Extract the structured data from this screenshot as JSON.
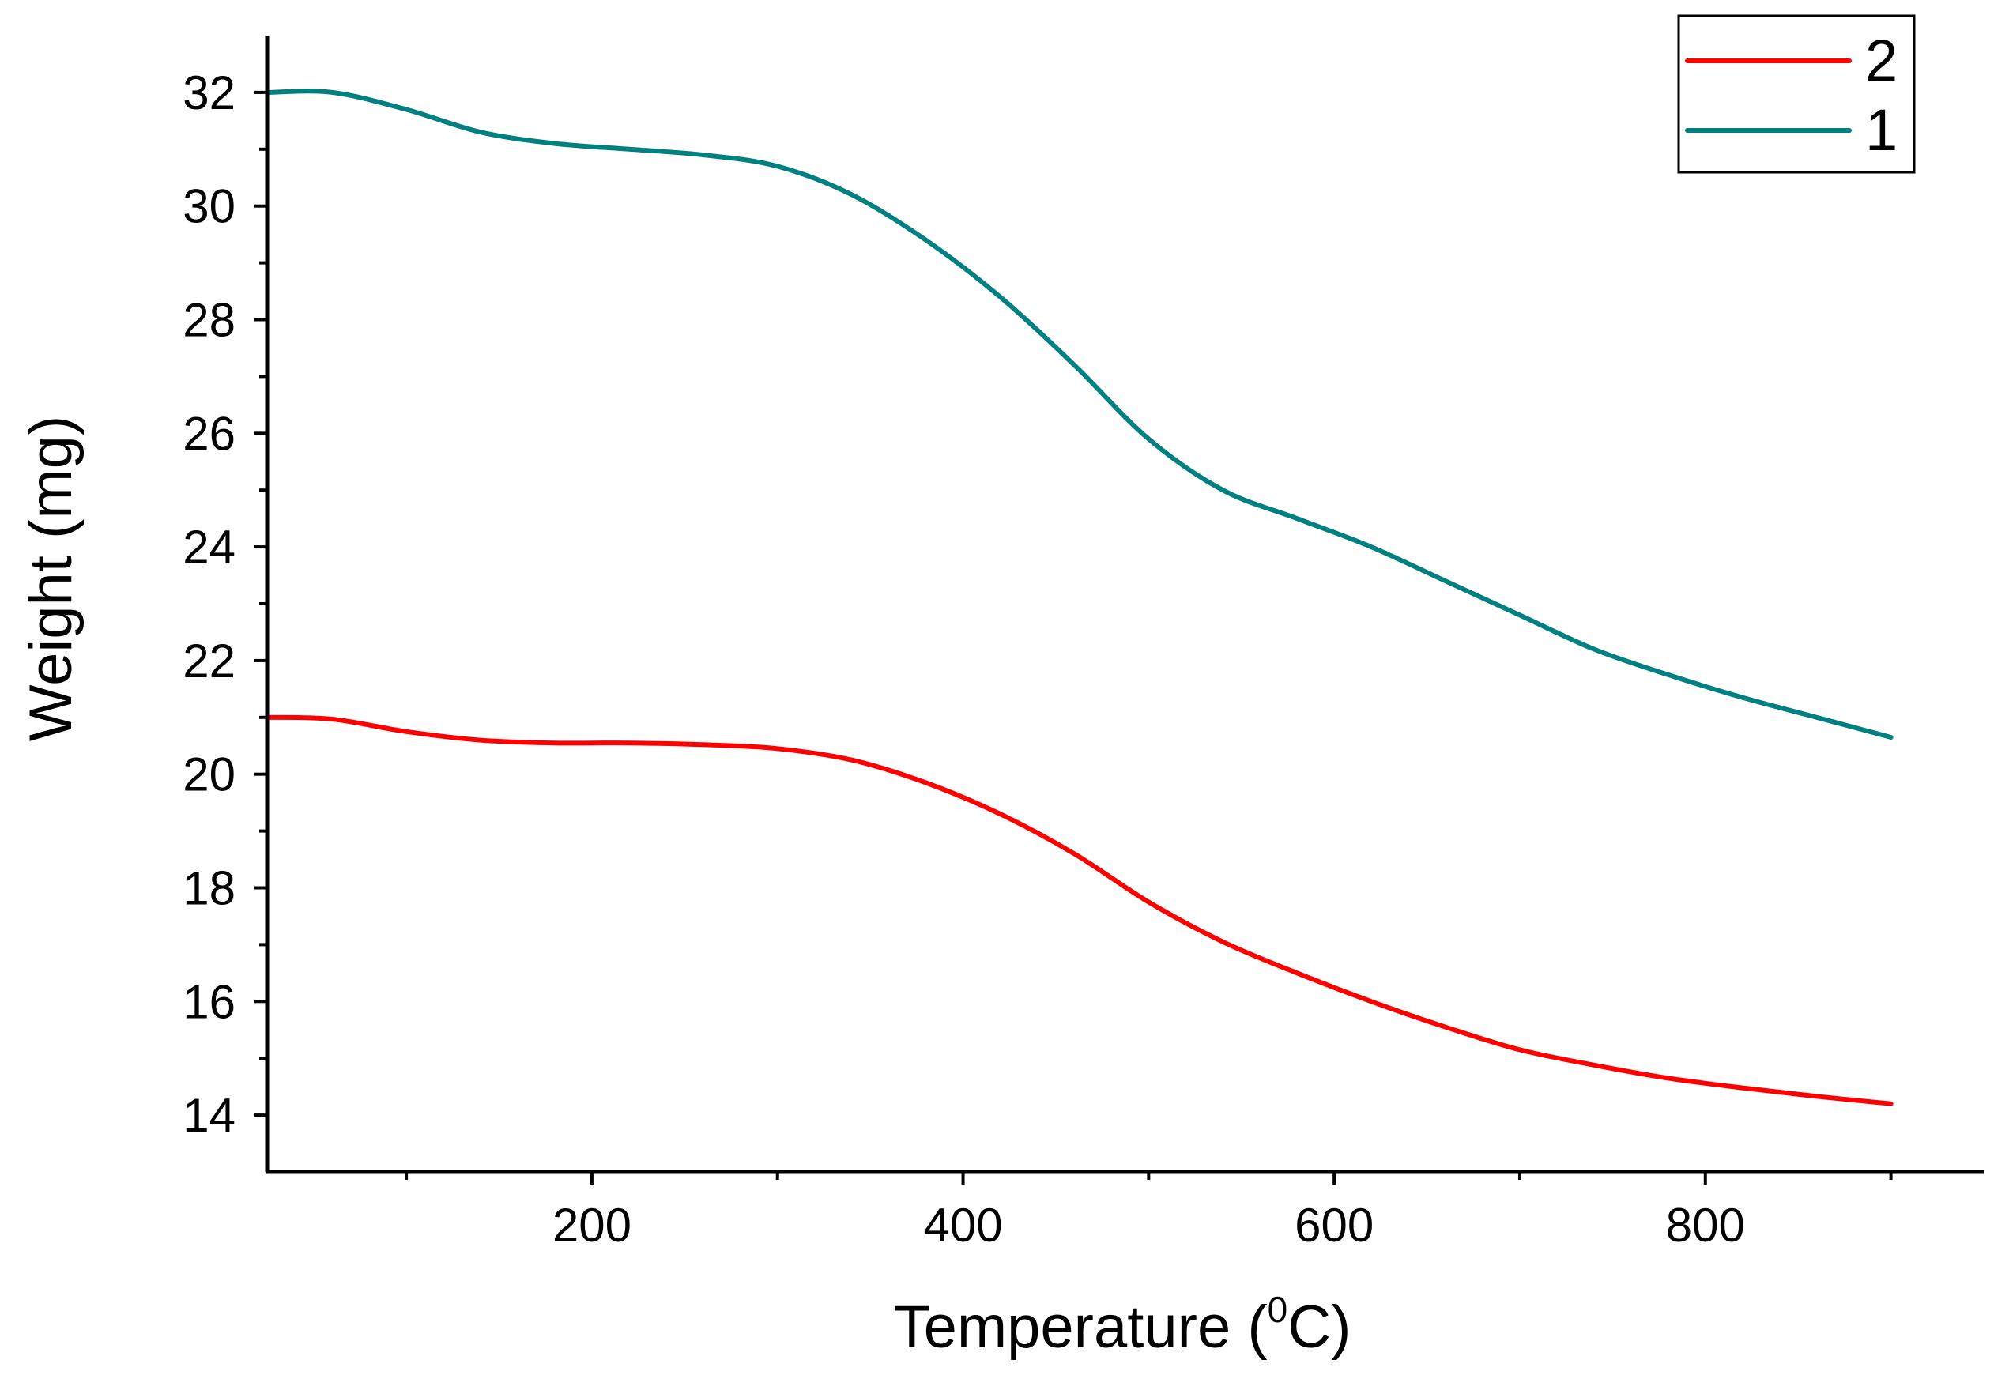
{
  "chart_data": {
    "type": "line",
    "title": "",
    "xlabel": "Temperature (",
    "xlabel_superscript": "0",
    "xlabel_suffix": "C)",
    "ylabel": "Weight (mg)",
    "xlim": [
      25,
      950
    ],
    "ylim": [
      13,
      33
    ],
    "x_ticks": [
      200,
      400,
      600,
      800
    ],
    "x_minor_ticks": [
      100,
      300,
      500,
      700,
      900
    ],
    "y_ticks": [
      14,
      16,
      18,
      20,
      22,
      24,
      26,
      28,
      30,
      32
    ],
    "y_minor_ticks": [
      15,
      17,
      19,
      21,
      23,
      25,
      27,
      29,
      31
    ],
    "grid": false,
    "legend_position": "top-right",
    "series": [
      {
        "name": "2",
        "color": "#ff0000",
        "x": [
          25,
          60,
          100,
          140,
          180,
          220,
          260,
          300,
          340,
          380,
          420,
          460,
          500,
          540,
          580,
          620,
          660,
          700,
          740,
          780,
          820,
          860,
          900
        ],
        "y": [
          21.0,
          20.97,
          20.75,
          20.6,
          20.55,
          20.55,
          20.52,
          20.45,
          20.25,
          19.85,
          19.3,
          18.6,
          17.75,
          17.05,
          16.5,
          16.0,
          15.55,
          15.15,
          14.88,
          14.65,
          14.48,
          14.33,
          14.2
        ]
      },
      {
        "name": "1",
        "color": "#008080",
        "x": [
          25,
          60,
          100,
          140,
          180,
          220,
          260,
          300,
          340,
          380,
          420,
          460,
          500,
          540,
          580,
          620,
          660,
          700,
          740,
          780,
          820,
          860,
          900
        ],
        "y": [
          32.0,
          32.0,
          31.7,
          31.3,
          31.1,
          31.0,
          30.9,
          30.7,
          30.2,
          29.4,
          28.4,
          27.2,
          25.9,
          25.0,
          24.5,
          24.0,
          23.4,
          22.8,
          22.2,
          21.75,
          21.35,
          21.0,
          20.65
        ]
      }
    ]
  }
}
